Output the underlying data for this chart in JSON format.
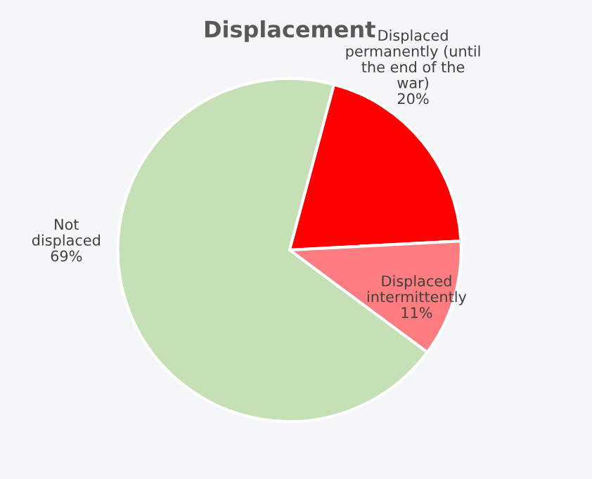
{
  "chart_data": {
    "type": "pie",
    "title": "Displacement",
    "categories": [
      "Displaced\npermanently (until\nthe end of the\nwar)",
      "Displaced\nintermittently",
      "Not\ndisplaced"
    ],
    "values": [
      20,
      11,
      69
    ],
    "colors": [
      "#ff0000",
      "#ff7c80",
      "#c5e0b4"
    ],
    "value_labels": [
      "20%",
      "11%",
      "69%"
    ],
    "legend": false
  }
}
